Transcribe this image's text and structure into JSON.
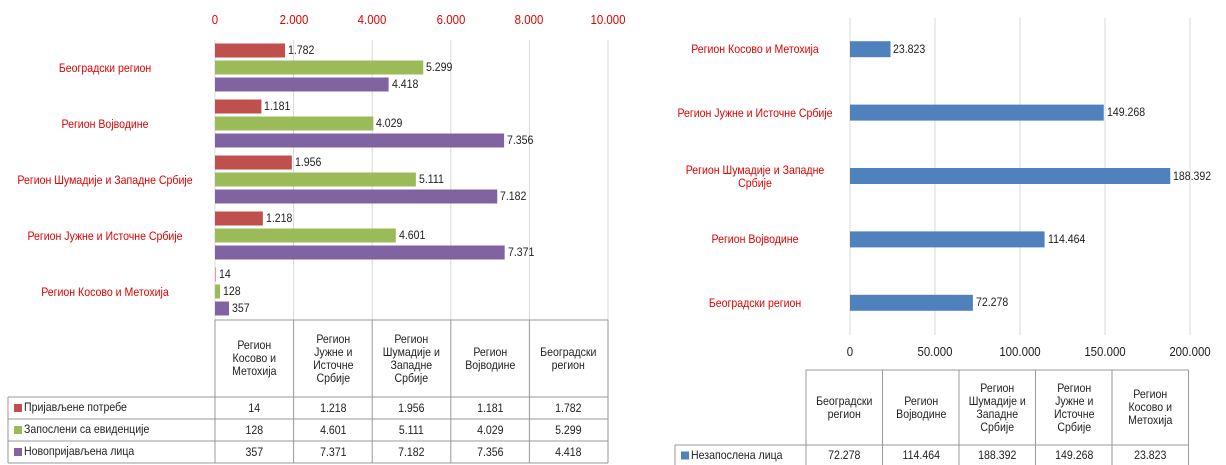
{
  "chart_data": [
    {
      "type": "bar",
      "orientation": "horizontal",
      "categories": [
        "Београдски регион",
        "Регион Војводине",
        "Регион Шумадије и Западне Србије",
        "Регион Јужне и Источне Србије",
        "Регион Косово и Метохија"
      ],
      "series": [
        {
          "name": "Пријављене потребе",
          "color": "#c0504d",
          "values": [
            1782,
            1181,
            1956,
            1218,
            14
          ],
          "value_labels": [
            "1.782",
            "1.181",
            "1.956",
            "1.218",
            "14"
          ]
        },
        {
          "name": "Запослени са евиденције",
          "color": "#9bbb59",
          "values": [
            5299,
            4029,
            5111,
            4601,
            128
          ],
          "value_labels": [
            "5.299",
            "4.029",
            "5.111",
            "4.601",
            "128"
          ]
        },
        {
          "name": "Новопријављена лица",
          "color": "#8064a2",
          "values": [
            4418,
            7356,
            7182,
            7371,
            357
          ],
          "value_labels": [
            "4.418",
            "7.356",
            "7.182",
            "7.371",
            "357"
          ]
        }
      ],
      "xlim": [
        0,
        10000
      ],
      "xticks": [
        0,
        {
          "value": 2000,
          "label": "2.000"
        },
        {
          "value": 4000,
          "label": "4.000"
        },
        {
          "value": 6000,
          "label": "6.000"
        },
        {
          "value": 8000,
          "label": "8.000"
        },
        {
          "value": 10000,
          "label": "10.000"
        }
      ],
      "grid": true,
      "data_table": true
    },
    {
      "type": "bar",
      "orientation": "horizontal",
      "categories": [
        "Регион Косово и Метохија",
        "Регион Јужне и Источне Србије",
        "Регион Шумадије и Западне Србије",
        "Регион Војводине",
        "Београдски регион"
      ],
      "series": [
        {
          "name": "Незапослена лица",
          "color": "#4f81bd",
          "values": [
            23823,
            149268,
            188392,
            114464,
            72278
          ],
          "value_labels": [
            "23.823",
            "149.268",
            "188.392",
            "114.464",
            "72.278"
          ]
        }
      ],
      "xlim": [
        0,
        200000
      ],
      "xticks": [
        0,
        {
          "value": 50000,
          "label": "50.000"
        },
        {
          "value": 100000,
          "label": "100.000"
        },
        {
          "value": 150000,
          "label": "150.000"
        },
        {
          "value": 200000,
          "label": "200.000"
        }
      ],
      "grid": true,
      "data_table": true
    }
  ]
}
